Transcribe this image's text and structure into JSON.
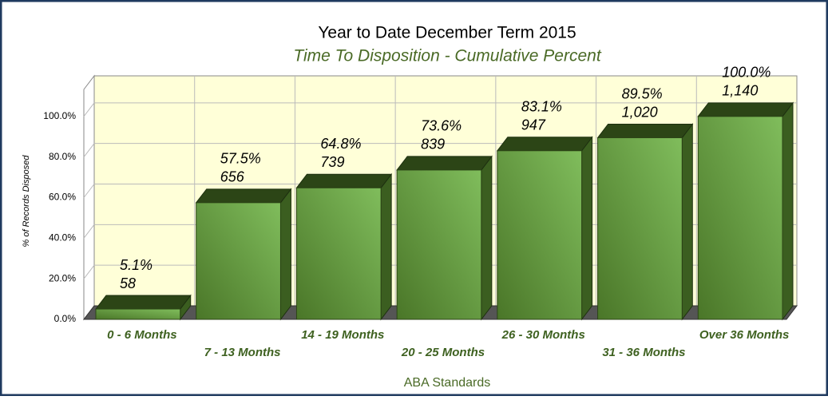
{
  "chart_data": {
    "type": "bar3d",
    "title": "Year to Date December Term 2015",
    "subtitle": "Time To Disposition - Cumulative Percent",
    "x_label": "ABA Standards",
    "y_label": "% of Records Disposed",
    "categories": [
      "0 - 6 Months",
      "7 - 13 Months",
      "14 - 19 Months",
      "20 - 25 Months",
      "26 - 30 Months",
      "31 - 36 Months",
      "Over 36 Months"
    ],
    "values": [
      5.1,
      57.5,
      64.8,
      73.6,
      83.1,
      89.5,
      100.0
    ],
    "value_labels": [
      "5.1%",
      "57.5%",
      "64.8%",
      "73.6%",
      "83.1%",
      "89.5%",
      "100.0%"
    ],
    "counts": [
      58,
      656,
      739,
      839,
      947,
      1020,
      1140
    ],
    "count_labels": [
      "58",
      "656",
      "739",
      "839",
      "947",
      "1,020",
      "1,140"
    ],
    "color": "#5e9438",
    "ylim": [
      0,
      120
    ],
    "yticks": [
      {
        "value": 0,
        "label": "0.0%"
      },
      {
        "value": 20,
        "label": "20.0%"
      },
      {
        "value": 40,
        "label": "40.0%"
      },
      {
        "value": 60,
        "label": "60.0%"
      },
      {
        "value": 80,
        "label": "80.0%"
      },
      {
        "value": 100,
        "label": "100.0%"
      }
    ],
    "grid": true
  }
}
